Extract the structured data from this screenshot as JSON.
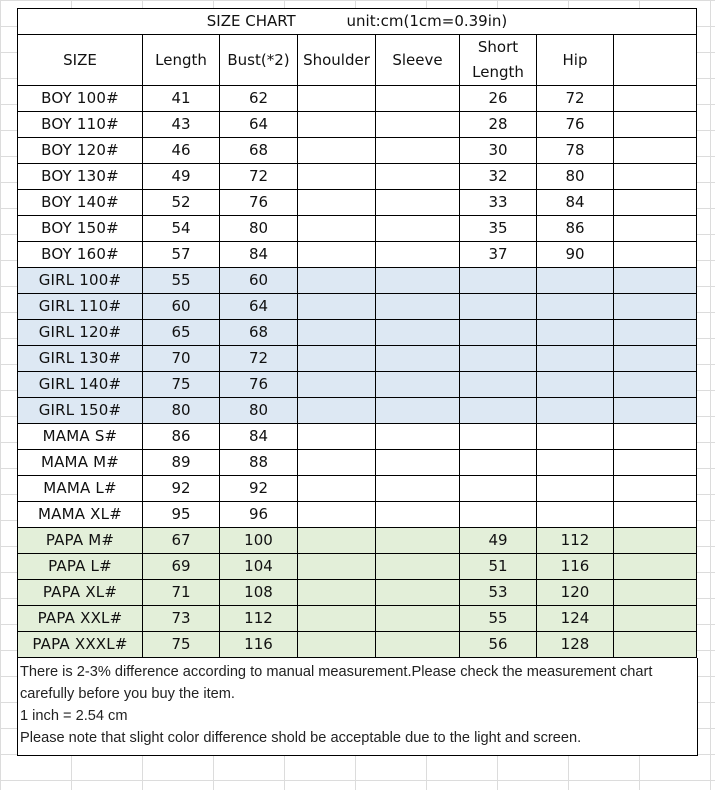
{
  "title": "SIZE CHART",
  "unit": "unit:cm(1cm=0.39in)",
  "headers": [
    "SIZE",
    "Length",
    "Bust(*2)",
    "Shoulder",
    "Sleeve",
    "Short Length",
    "Hip",
    ""
  ],
  "header_short_length": [
    "Short",
    "Length"
  ],
  "rows": [
    {
      "size": "BOY 100#",
      "length": "41",
      "bust": "62",
      "shoulder": "",
      "sleeve": "",
      "short_length": "26",
      "hip": "72",
      "group": "boy"
    },
    {
      "size": "BOY 110#",
      "length": "43",
      "bust": "64",
      "shoulder": "",
      "sleeve": "",
      "short_length": "28",
      "hip": "76",
      "group": "boy"
    },
    {
      "size": "BOY 120#",
      "length": "46",
      "bust": "68",
      "shoulder": "",
      "sleeve": "",
      "short_length": "30",
      "hip": "78",
      "group": "boy"
    },
    {
      "size": "BOY 130#",
      "length": "49",
      "bust": "72",
      "shoulder": "",
      "sleeve": "",
      "short_length": "32",
      "hip": "80",
      "group": "boy"
    },
    {
      "size": "BOY 140#",
      "length": "52",
      "bust": "76",
      "shoulder": "",
      "sleeve": "",
      "short_length": "33",
      "hip": "84",
      "group": "boy"
    },
    {
      "size": "BOY 150#",
      "length": "54",
      "bust": "80",
      "shoulder": "",
      "sleeve": "",
      "short_length": "35",
      "hip": "86",
      "group": "boy"
    },
    {
      "size": "BOY 160#",
      "length": "57",
      "bust": "84",
      "shoulder": "",
      "sleeve": "",
      "short_length": "37",
      "hip": "90",
      "group": "boy"
    },
    {
      "size": "GIRL 100#",
      "length": "55",
      "bust": "60",
      "shoulder": "",
      "sleeve": "",
      "short_length": "",
      "hip": "",
      "group": "girl"
    },
    {
      "size": "GIRL 110#",
      "length": "60",
      "bust": "64",
      "shoulder": "",
      "sleeve": "",
      "short_length": "",
      "hip": "",
      "group": "girl"
    },
    {
      "size": "GIRL 120#",
      "length": "65",
      "bust": "68",
      "shoulder": "",
      "sleeve": "",
      "short_length": "",
      "hip": "",
      "group": "girl"
    },
    {
      "size": "GIRL 130#",
      "length": "70",
      "bust": "72",
      "shoulder": "",
      "sleeve": "",
      "short_length": "",
      "hip": "",
      "group": "girl"
    },
    {
      "size": "GIRL 140#",
      "length": "75",
      "bust": "76",
      "shoulder": "",
      "sleeve": "",
      "short_length": "",
      "hip": "",
      "group": "girl"
    },
    {
      "size": "GIRL 150#",
      "length": "80",
      "bust": "80",
      "shoulder": "",
      "sleeve": "",
      "short_length": "",
      "hip": "",
      "group": "girl"
    },
    {
      "size": "MAMA S#",
      "length": "86",
      "bust": "84",
      "shoulder": "",
      "sleeve": "",
      "short_length": "",
      "hip": "",
      "group": "mama"
    },
    {
      "size": "MAMA M#",
      "length": "89",
      "bust": "88",
      "shoulder": "",
      "sleeve": "",
      "short_length": "",
      "hip": "",
      "group": "mama"
    },
    {
      "size": "MAMA L#",
      "length": "92",
      "bust": "92",
      "shoulder": "",
      "sleeve": "",
      "short_length": "",
      "hip": "",
      "group": "mama"
    },
    {
      "size": "MAMA XL#",
      "length": "95",
      "bust": "96",
      "shoulder": "",
      "sleeve": "",
      "short_length": "",
      "hip": "",
      "group": "mama"
    },
    {
      "size": "PAPA M#",
      "length": "67",
      "bust": "100",
      "shoulder": "",
      "sleeve": "",
      "short_length": "49",
      "hip": "112",
      "group": "papa"
    },
    {
      "size": "PAPA L#",
      "length": "69",
      "bust": "104",
      "shoulder": "",
      "sleeve": "",
      "short_length": "51",
      "hip": "116",
      "group": "papa"
    },
    {
      "size": "PAPA XL#",
      "length": "71",
      "bust": "108",
      "shoulder": "",
      "sleeve": "",
      "short_length": "53",
      "hip": "120",
      "group": "papa"
    },
    {
      "size": "PAPA XXL#",
      "length": "73",
      "bust": "112",
      "shoulder": "",
      "sleeve": "",
      "short_length": "55",
      "hip": "124",
      "group": "papa"
    },
    {
      "size": "PAPA XXXL#",
      "length": "75",
      "bust": "116",
      "shoulder": "",
      "sleeve": "",
      "short_length": "56",
      "hip": "128",
      "group": "papa"
    }
  ],
  "notes": [
    "There is 2-3% difference according to manual measurement.Please  check the measurement chart carefully before you buy the item.",
    "1 inch = 2.54 cm",
    "Please note that slight color difference shold be acceptable due to the light and screen."
  ],
  "colors": {
    "girl_row_bg": "#dde8f3",
    "papa_row_bg": "#e3efd9",
    "border": "#000000"
  }
}
